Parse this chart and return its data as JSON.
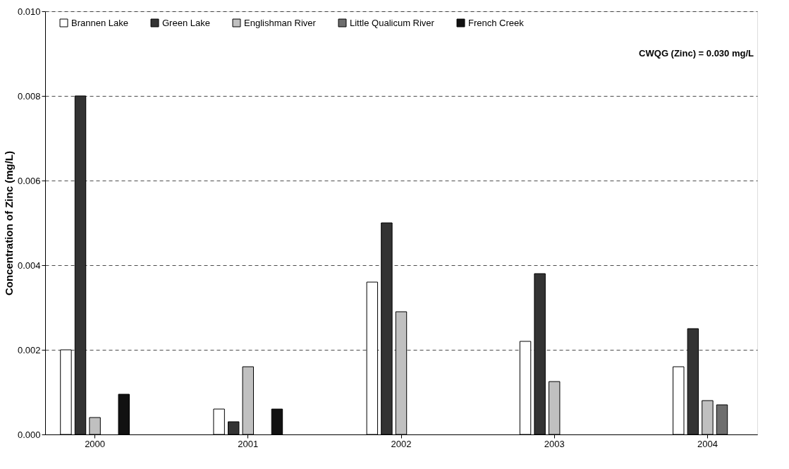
{
  "chart_data": {
    "type": "bar",
    "ylabel": "Concentration of Zinc (mg/L)",
    "categories": [
      "2000",
      "2001",
      "2002",
      "2003",
      "2004"
    ],
    "series": [
      {
        "name": "Brannen Lake",
        "color": "#ffffff",
        "values": [
          0.002,
          0.0006,
          0.0036,
          0.0022,
          0.0016
        ]
      },
      {
        "name": "Green Lake",
        "color": "#333333",
        "values": [
          0.008,
          0.0003,
          0.005,
          0.0038,
          0.0025
        ]
      },
      {
        "name": "Englishman River",
        "color": "#c0c0c0",
        "values": [
          0.0004,
          0.0016,
          0.0029,
          0.00125,
          0.0008
        ]
      },
      {
        "name": "Little Qualicum River",
        "color": "#6e6e6e",
        "values": [
          null,
          null,
          null,
          null,
          0.0007
        ]
      },
      {
        "name": "French Creek",
        "color": "#111111",
        "values": [
          0.00095,
          0.0006,
          null,
          null,
          null
        ]
      }
    ],
    "ylim": [
      0,
      0.01
    ],
    "yticks": [
      {
        "value": 0,
        "label": "0.000"
      },
      {
        "value": 0.002,
        "label": "0.002"
      },
      {
        "value": 0.004,
        "label": "0.004"
      },
      {
        "value": 0.006,
        "label": "0.006"
      },
      {
        "value": 0.008,
        "label": "0.008"
      },
      {
        "value": 0.01,
        "label": "0.010"
      }
    ],
    "grid": "y",
    "legend": "top",
    "annotations": [
      "CWQG (Zinc) = 0.030 mg/L"
    ]
  }
}
